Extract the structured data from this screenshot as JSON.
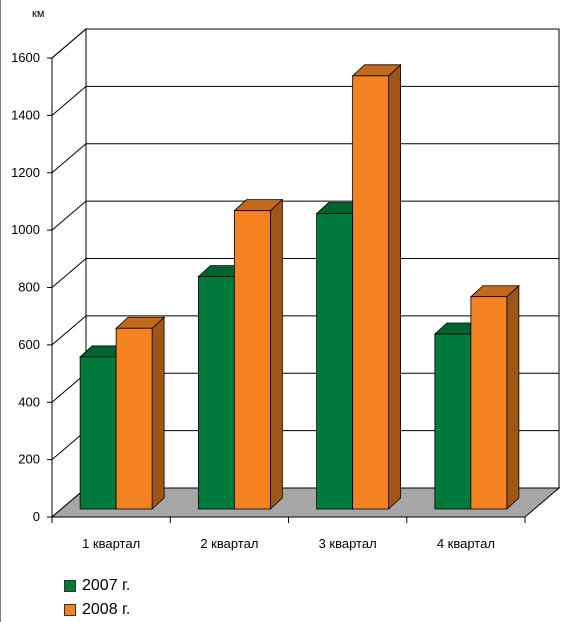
{
  "chart_data": {
    "type": "bar",
    "style": "3d-clustered",
    "unit": "км",
    "categories": [
      "1 квартал",
      "2 квартал",
      "3 квартал",
      "4 квартал"
    ],
    "series": [
      {
        "name": "2007 г.",
        "color": "#007a3a",
        "values": [
          530,
          810,
          1030,
          610
        ]
      },
      {
        "name": "2008 г.",
        "color": "#f58220",
        "values": [
          630,
          1040,
          1510,
          740
        ]
      }
    ],
    "ylim": [
      0,
      1600
    ],
    "yticks": [
      "0",
      "200",
      "400",
      "600",
      "800",
      "1000",
      "1200",
      "1400",
      "1600"
    ],
    "grid": true,
    "legend_position": "bottom-left"
  }
}
